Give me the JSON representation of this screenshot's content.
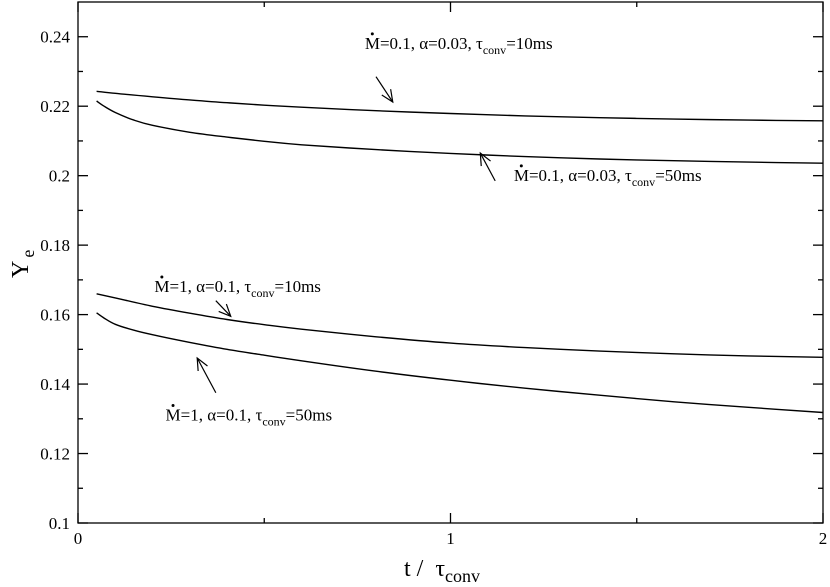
{
  "chart_data": {
    "type": "line",
    "xlabel_main": "t / ",
    "xlabel_tau": "τ",
    "xlabel_sub": "conv",
    "ylabel_main": "Y",
    "ylabel_sub": "e",
    "xlim": [
      0,
      2
    ],
    "ylim": [
      0.1,
      0.25
    ],
    "xticks": [
      0,
      1,
      2
    ],
    "xtick_labels": [
      "0",
      "1",
      "2"
    ],
    "yticks": [
      0.1,
      0.12,
      0.14,
      0.16,
      0.18,
      0.2,
      0.22,
      0.24
    ],
    "ytick_labels": [
      "0.1",
      "0.12",
      "0.14",
      "0.16",
      "0.18",
      "0.2",
      "0.22",
      "0.24"
    ],
    "grid": false,
    "series": [
      {
        "x": [
          0.05,
          0.1,
          0.2,
          0.3,
          0.4,
          0.5,
          0.6,
          0.8,
          1.0,
          1.2,
          1.4,
          1.6,
          1.8,
          2.0
        ],
        "y": [
          0.2243,
          0.2237,
          0.2227,
          0.2218,
          0.221,
          0.2203,
          0.2197,
          0.2187,
          0.2179,
          0.2172,
          0.2167,
          0.2163,
          0.216,
          0.2158
        ]
      },
      {
        "x": [
          0.05,
          0.07,
          0.1,
          0.15,
          0.2,
          0.3,
          0.4,
          0.5,
          0.6,
          0.8,
          1.0,
          1.2,
          1.4,
          1.6,
          1.8,
          2.0
        ],
        "y": [
          0.2215,
          0.22,
          0.2182,
          0.216,
          0.2145,
          0.2125,
          0.2111,
          0.2099,
          0.2089,
          0.2075,
          0.2064,
          0.2055,
          0.2048,
          0.2043,
          0.2039,
          0.2036
        ]
      },
      {
        "x": [
          0.05,
          0.1,
          0.2,
          0.3,
          0.4,
          0.5,
          0.6,
          0.8,
          1.0,
          1.2,
          1.4,
          1.6,
          1.8,
          2.0
        ],
        "y": [
          0.166,
          0.1648,
          0.1624,
          0.1604,
          0.1586,
          0.1571,
          0.1558,
          0.1536,
          0.1518,
          0.1505,
          0.1495,
          0.1487,
          0.1481,
          0.1477
        ]
      },
      {
        "x": [
          0.05,
          0.07,
          0.1,
          0.15,
          0.2,
          0.3,
          0.4,
          0.5,
          0.6,
          0.8,
          1.0,
          1.2,
          1.4,
          1.6,
          1.8,
          2.0
        ],
        "y": [
          0.1605,
          0.159,
          0.1572,
          0.1555,
          0.1542,
          0.152,
          0.15,
          0.1483,
          0.1467,
          0.1437,
          0.1411,
          0.1388,
          0.1368,
          0.1349,
          0.1333,
          0.1318
        ]
      }
    ],
    "annotations": [
      {
        "mdot": "M",
        "text1": "=0.1, α=0.03, τ",
        "sub": "conv",
        "text2": "=10ms",
        "x": 0.77,
        "y": 0.2365,
        "arrow_from": [
          0.8,
          0.2285
        ],
        "arrow_to": [
          0.845,
          0.2212
        ]
      },
      {
        "mdot": "M",
        "text1": "=0.1, α=0.03, τ",
        "sub": "conv",
        "text2": "=50ms",
        "x": 1.17,
        "y": 0.1985,
        "arrow_from": [
          1.12,
          0.1985
        ],
        "arrow_to": [
          1.08,
          0.2065
        ]
      },
      {
        "mdot": "M",
        "text1": "=1, α=0.1, τ",
        "sub": "conv",
        "text2": "=10ms",
        "x": 0.205,
        "y": 0.1665,
        "arrow_from": [
          0.37,
          0.164
        ],
        "arrow_to": [
          0.41,
          0.1595
        ]
      },
      {
        "mdot": "M",
        "text1": "=1, α=0.1, τ",
        "sub": "conv",
        "text2": "=50ms",
        "x": 0.235,
        "y": 0.1295,
        "arrow_from": [
          0.37,
          0.1375
        ],
        "arrow_to": [
          0.32,
          0.1475
        ]
      }
    ],
    "colors": {
      "line": "#000000",
      "background": "#ffffff"
    }
  }
}
